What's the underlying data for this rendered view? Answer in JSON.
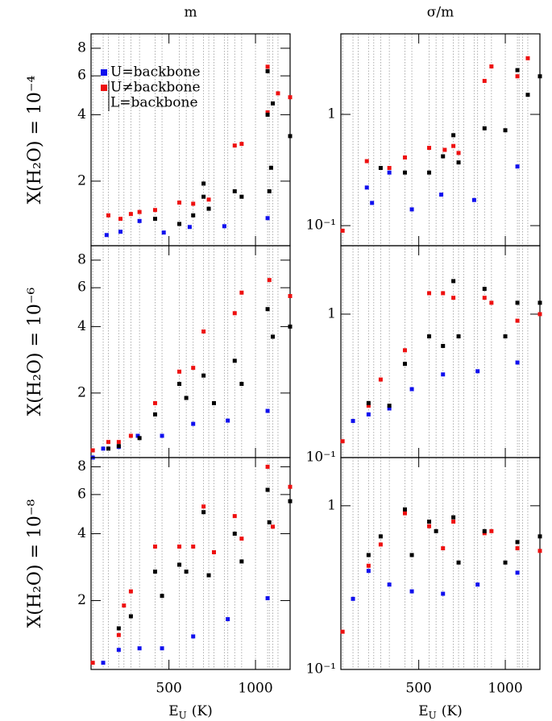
{
  "chart_data": [
    {
      "type": "scatter",
      "title": "m",
      "ylabel": "X(H₂O) = 10⁻⁴",
      "log_y": true,
      "legend": "upper left",
      "xlim": [
        50,
        1200
      ],
      "xticks": [
        500,
        1000
      ],
      "ylim": [
        1.02,
        9.3
      ],
      "yticks": [
        2,
        4,
        6,
        8
      ],
      "grid_x": [
        60,
        120,
        150,
        210,
        240,
        280,
        330,
        420,
        460,
        560,
        600,
        640,
        700,
        730,
        760,
        820,
        840,
        880,
        920,
        1000,
        1070,
        1080,
        1100,
        1130,
        1200
      ],
      "series": [
        {
          "name": "U=backbone",
          "color": "#1010ee",
          "x": [
            140,
            220,
            330,
            470,
            620,
            820,
            1070
          ],
          "values": [
            1.14,
            1.18,
            1.32,
            1.17,
            1.24,
            1.25,
            1.36
          ]
        },
        {
          "name": "U≠backbone",
          "color": "#ee1010",
          "x": [
            150,
            220,
            280,
            330,
            420,
            560,
            640,
            730,
            880,
            920,
            1070,
            1070,
            1130,
            1200
          ],
          "values": [
            1.4,
            1.35,
            1.42,
            1.45,
            1.48,
            1.6,
            1.58,
            1.65,
            2.9,
            2.95,
            6.6,
            4.1,
            5.0,
            4.8
          ]
        },
        {
          "name": "L=backbone",
          "color": "#000000",
          "x": [
            420,
            560,
            640,
            700,
            700,
            730,
            880,
            920,
            1070,
            1070,
            1080,
            1090,
            1100,
            1200
          ],
          "values": [
            1.35,
            1.28,
            1.4,
            1.95,
            1.7,
            1.5,
            1.8,
            1.7,
            6.3,
            4.0,
            1.8,
            2.3,
            4.5,
            3.2
          ]
        }
      ]
    },
    {
      "type": "scatter",
      "title": "σ/m",
      "log_y": true,
      "xlim": [
        50,
        1200
      ],
      "xticks": [
        500,
        1000
      ],
      "ylim": [
        0.066,
        5.3
      ],
      "yticks": [
        {
          "value": 0.1,
          "label": "10⁻¹"
        },
        1
      ],
      "grid_x": [
        60,
        120,
        150,
        210,
        240,
        280,
        330,
        420,
        460,
        560,
        600,
        640,
        700,
        730,
        760,
        820,
        840,
        880,
        920,
        1000,
        1070,
        1080,
        1100,
        1130,
        1200
      ],
      "series": [
        {
          "name": "U=backbone",
          "color": "#1010ee",
          "x": [
            200,
            230,
            330,
            460,
            630,
            820,
            1070
          ],
          "values": [
            0.22,
            0.16,
            0.3,
            0.14,
            0.19,
            0.17,
            0.34
          ]
        },
        {
          "name": "U≠backbone",
          "color": "#ee1010",
          "x": [
            60,
            200,
            330,
            420,
            560,
            650,
            700,
            730,
            880,
            920,
            1070,
            1130
          ],
          "values": [
            0.09,
            0.38,
            0.33,
            0.41,
            0.5,
            0.48,
            0.52,
            0.45,
            2.0,
            2.7,
            2.2,
            3.2
          ]
        },
        {
          "name": "L=backbone",
          "color": "#000000",
          "x": [
            280,
            420,
            560,
            640,
            700,
            730,
            880,
            1000,
            1070,
            1130,
            1200
          ],
          "values": [
            0.33,
            0.3,
            0.3,
            0.42,
            0.65,
            0.37,
            0.75,
            0.72,
            2.5,
            1.5,
            2.2
          ]
        }
      ]
    },
    {
      "type": "scatter",
      "ylabel": "X(H₂O) = 10⁻⁶",
      "log_y": true,
      "xlim": [
        50,
        1200
      ],
      "xticks": [
        500,
        1000
      ],
      "ylim": [
        1.02,
        9.3
      ],
      "yticks": [
        2,
        4,
        6,
        8
      ],
      "grid_x": [
        60,
        120,
        150,
        210,
        240,
        280,
        330,
        420,
        460,
        560,
        600,
        640,
        700,
        730,
        760,
        820,
        840,
        880,
        920,
        1000,
        1070,
        1080,
        1100,
        1130,
        1200
      ],
      "series": [
        {
          "name": "U=backbone",
          "color": "#1010ee",
          "x": [
            60,
            120,
            210,
            320,
            460,
            640,
            840,
            1070
          ],
          "values": [
            1.02,
            1.12,
            1.14,
            1.28,
            1.28,
            1.45,
            1.5,
            1.66
          ]
        },
        {
          "name": "U≠backbone",
          "color": "#ee1010",
          "x": [
            60,
            150,
            210,
            280,
            420,
            560,
            640,
            700,
            880,
            920,
            1080,
            1200
          ],
          "values": [
            1.1,
            1.2,
            1.2,
            1.28,
            1.8,
            2.5,
            2.6,
            3.8,
            4.6,
            5.7,
            6.5,
            5.5
          ]
        },
        {
          "name": "L=backbone",
          "color": "#000000",
          "x": [
            150,
            210,
            330,
            420,
            560,
            600,
            700,
            760,
            880,
            920,
            1070,
            1100,
            1200
          ],
          "values": [
            1.12,
            1.15,
            1.25,
            1.6,
            2.2,
            1.9,
            2.4,
            1.8,
            2.8,
            2.2,
            4.8,
            3.6,
            4.0
          ]
        }
      ]
    },
    {
      "type": "scatter",
      "log_y": true,
      "xlim": [
        50,
        1200
      ],
      "xticks": [
        500,
        1000
      ],
      "ylim": [
        0.1,
        3.0
      ],
      "yticks": [
        {
          "value": 0.1,
          "label": "10⁻¹"
        },
        1
      ],
      "grid_x": [
        60,
        120,
        150,
        210,
        240,
        280,
        330,
        420,
        460,
        560,
        600,
        640,
        700,
        730,
        760,
        820,
        840,
        880,
        920,
        1000,
        1070,
        1080,
        1100,
        1130,
        1200
      ],
      "series": [
        {
          "name": "U=backbone",
          "color": "#1010ee",
          "x": [
            120,
            210,
            330,
            460,
            640,
            840,
            1070
          ],
          "values": [
            0.18,
            0.2,
            0.22,
            0.3,
            0.38,
            0.4,
            0.46
          ]
        },
        {
          "name": "U≠backbone",
          "color": "#ee1010",
          "x": [
            60,
            210,
            280,
            420,
            560,
            640,
            700,
            880,
            920,
            1070,
            1200
          ],
          "values": [
            0.13,
            0.23,
            0.35,
            0.56,
            1.4,
            1.4,
            1.3,
            1.3,
            1.2,
            0.9,
            1.0
          ]
        },
        {
          "name": "L=backbone",
          "color": "#000000",
          "x": [
            210,
            330,
            420,
            560,
            640,
            700,
            730,
            880,
            1000,
            1070,
            1200
          ],
          "values": [
            0.24,
            0.23,
            0.45,
            0.7,
            0.6,
            1.7,
            0.7,
            1.5,
            0.7,
            1.2,
            1.2
          ]
        }
      ]
    },
    {
      "type": "scatter",
      "ylabel": "X(H₂O) = 10⁻⁸",
      "xlabel": "E",
      "xlabel_sub": "U",
      "xlabel_unit": "(K)",
      "log_y": true,
      "xlim": [
        50,
        1200
      ],
      "xticks": [
        500,
        1000
      ],
      "ylim": [
        0.98,
        8.8
      ],
      "yticks": [
        2,
        4,
        6,
        8
      ],
      "grid_x": [
        60,
        120,
        150,
        210,
        240,
        280,
        330,
        420,
        460,
        560,
        600,
        640,
        700,
        730,
        760,
        820,
        840,
        880,
        920,
        1000,
        1070,
        1080,
        1100,
        1130,
        1200
      ],
      "series": [
        {
          "name": "U=backbone",
          "color": "#1010ee",
          "x": [
            120,
            210,
            330,
            460,
            640,
            840,
            1070
          ],
          "values": [
            1.05,
            1.2,
            1.22,
            1.22,
            1.38,
            1.65,
            2.05
          ]
        },
        {
          "name": "U≠backbone",
          "color": "#ee1010",
          "x": [
            60,
            210,
            240,
            280,
            420,
            560,
            640,
            700,
            760,
            880,
            920,
            1070,
            1100,
            1200
          ],
          "values": [
            1.05,
            1.4,
            1.9,
            2.2,
            3.5,
            3.5,
            3.5,
            5.3,
            3.3,
            4.8,
            3.8,
            8.0,
            4.3,
            6.5
          ]
        },
        {
          "name": "L=backbone",
          "color": "#000000",
          "x": [
            210,
            280,
            420,
            460,
            560,
            600,
            700,
            730,
            880,
            920,
            1070,
            1080,
            1200
          ],
          "values": [
            1.5,
            1.7,
            2.7,
            2.1,
            2.9,
            2.7,
            5.0,
            2.6,
            4.0,
            3.0,
            6.3,
            4.5,
            5.6
          ]
        }
      ]
    },
    {
      "type": "scatter",
      "xlabel": "E",
      "xlabel_sub": "U",
      "xlabel_unit": "(K)",
      "log_y": true,
      "xlim": [
        50,
        1200
      ],
      "xticks": [
        500,
        1000
      ],
      "ylim": [
        0.1,
        1.97
      ],
      "yticks": [
        {
          "value": 0.1,
          "label": "10⁻¹"
        },
        1
      ],
      "grid_x": [
        60,
        120,
        150,
        210,
        240,
        280,
        330,
        420,
        460,
        560,
        600,
        640,
        700,
        730,
        760,
        820,
        840,
        880,
        920,
        1000,
        1070,
        1080,
        1100,
        1130,
        1200
      ],
      "series": [
        {
          "name": "U=backbone",
          "color": "#1010ee",
          "x": [
            120,
            210,
            330,
            460,
            640,
            840,
            1070
          ],
          "values": [
            0.27,
            0.4,
            0.33,
            0.3,
            0.29,
            0.33,
            0.39
          ]
        },
        {
          "name": "U≠backbone",
          "color": "#ee1010",
          "x": [
            60,
            210,
            280,
            420,
            560,
            640,
            700,
            880,
            920,
            1070,
            1200
          ],
          "values": [
            0.17,
            0.43,
            0.58,
            0.9,
            0.75,
            0.55,
            0.8,
            0.68,
            0.7,
            0.55,
            0.53
          ]
        },
        {
          "name": "L=backbone",
          "color": "#000000",
          "x": [
            210,
            280,
            420,
            460,
            560,
            600,
            700,
            730,
            880,
            1000,
            1070,
            1200
          ],
          "values": [
            0.5,
            0.65,
            0.95,
            0.5,
            0.8,
            0.7,
            0.85,
            0.45,
            0.7,
            0.45,
            0.6,
            0.65
          ]
        }
      ]
    }
  ]
}
